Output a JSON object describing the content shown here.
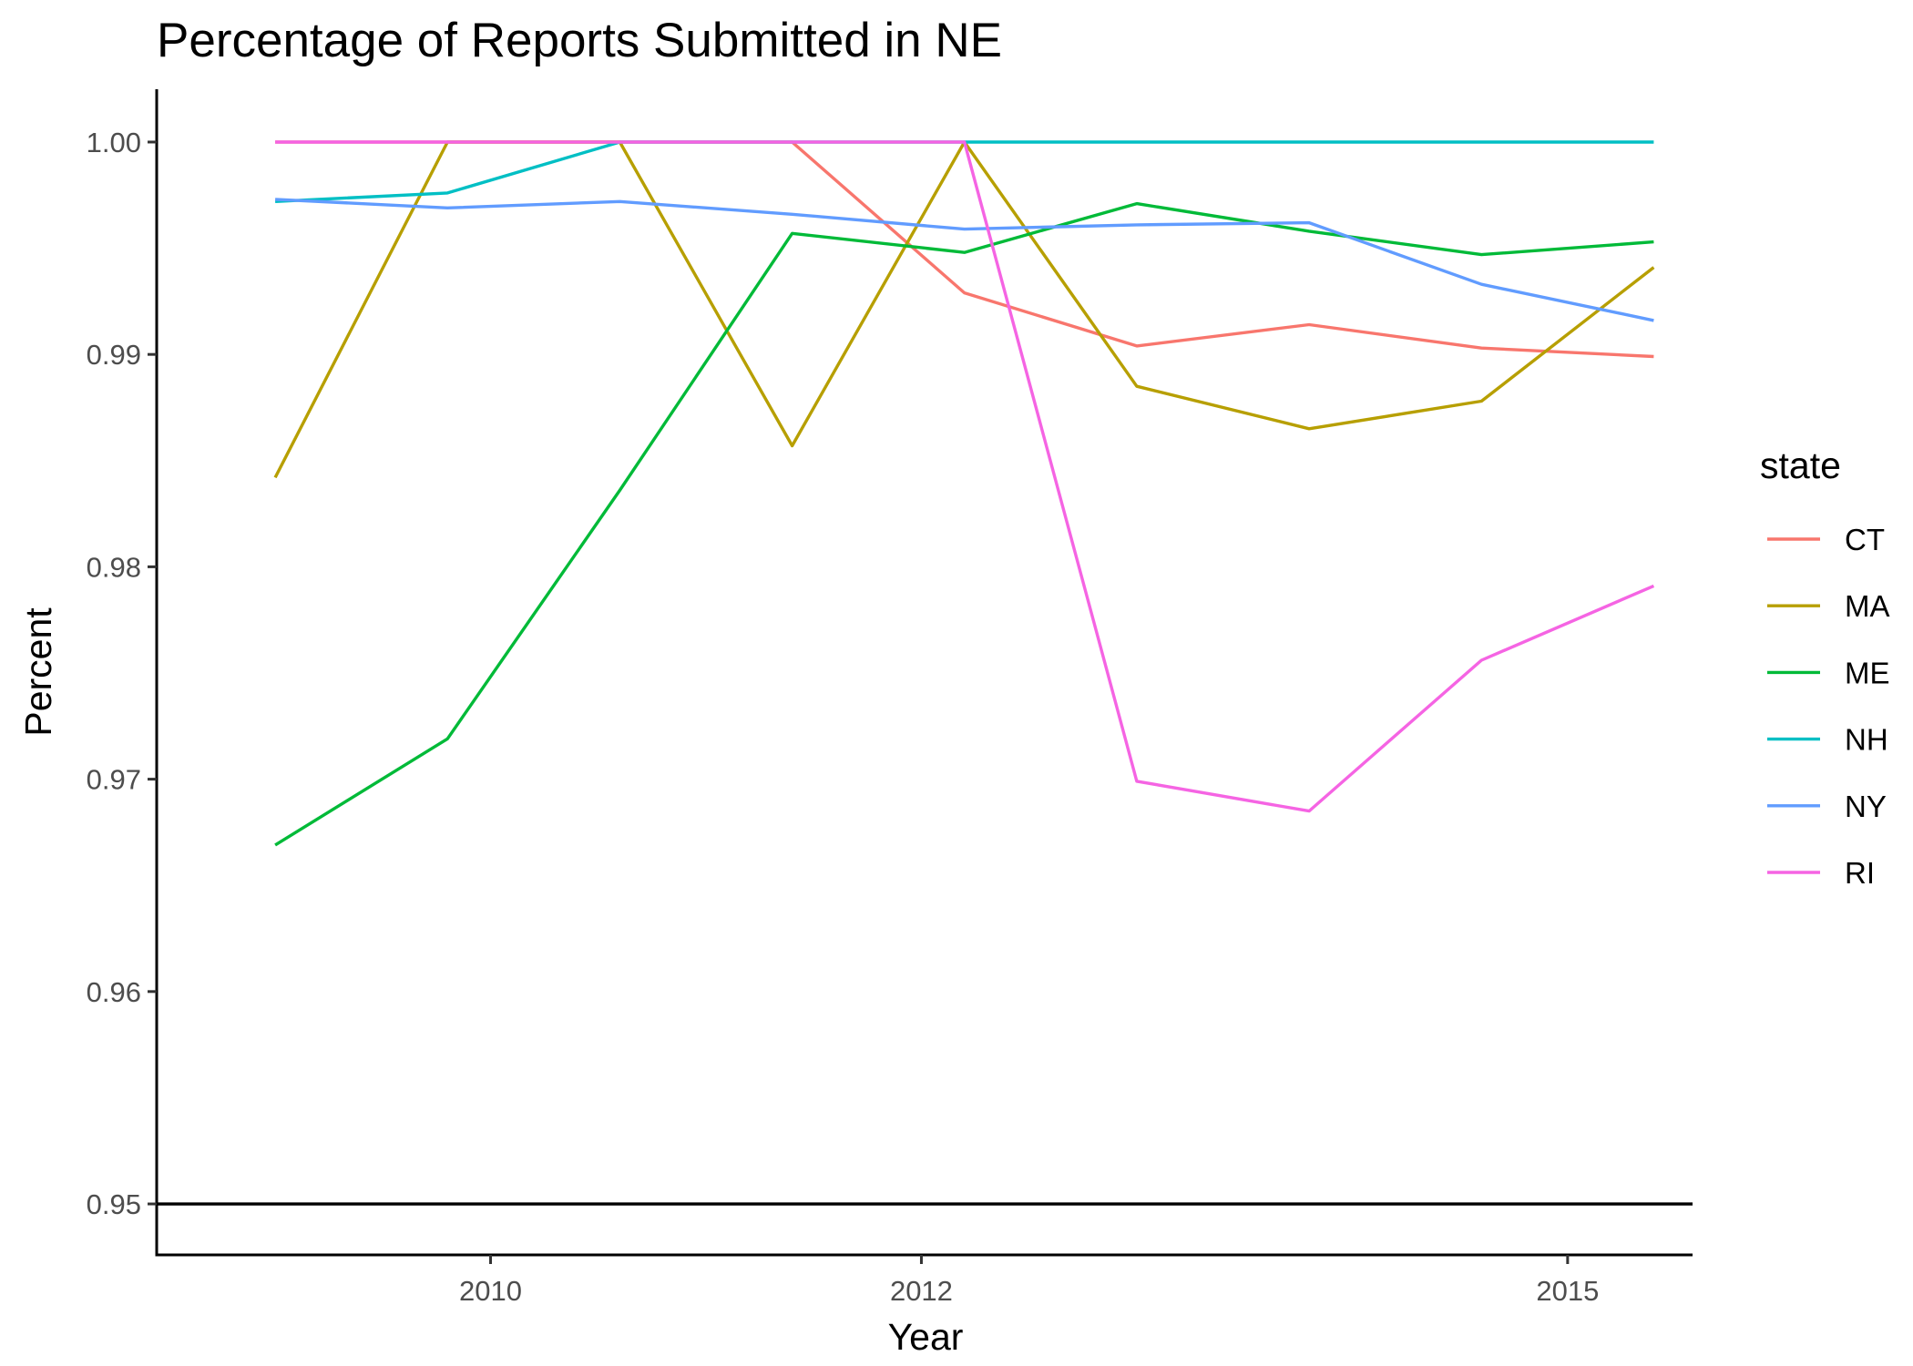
{
  "chart_data": {
    "type": "line",
    "title": "Percentage of Reports Submitted in NE",
    "xlabel": "Year",
    "ylabel": "Percent",
    "x_ticks": [
      2010,
      2012,
      2015
    ],
    "y_ticks": [
      0.95,
      0.96,
      0.97,
      0.98,
      0.99,
      1.0
    ],
    "y_tick_labels": [
      "0.95",
      "0.96",
      "0.97",
      "0.98",
      "0.99",
      "1.00"
    ],
    "xlim": [
      2008.45,
      2015.58
    ],
    "ylim": [
      0.9476,
      1.0024
    ],
    "x": [
      2009.0,
      2009.8,
      2010.6,
      2011.4,
      2012.2,
      2013.0,
      2013.8,
      2014.6,
      2015.4
    ],
    "reference_line": {
      "y": 0.95
    },
    "legend": {
      "title": "state",
      "position": "right"
    },
    "grid": false,
    "series": [
      {
        "name": "CT",
        "color": "#F8766D",
        "values": [
          1.0,
          1.0,
          1.0,
          1.0,
          0.9929,
          0.9904,
          0.9914,
          0.9903,
          0.9899
        ]
      },
      {
        "name": "MA",
        "color": "#B79F00",
        "values": [
          0.9842,
          1.0,
          1.0,
          0.9857,
          1.0,
          0.9885,
          0.9865,
          0.9878,
          0.9941
        ]
      },
      {
        "name": "ME",
        "color": "#00BA38",
        "values": [
          0.9669,
          0.9719,
          0.9836,
          0.9957,
          0.9948,
          0.9971,
          0.9958,
          0.9947,
          0.9953
        ]
      },
      {
        "name": "NH",
        "color": "#00BFC4",
        "values": [
          0.9972,
          0.9976,
          1.0,
          1.0,
          1.0,
          1.0,
          1.0,
          1.0,
          1.0
        ]
      },
      {
        "name": "NY",
        "color": "#619CFF",
        "values": [
          0.9973,
          0.9969,
          0.9972,
          0.9966,
          0.9959,
          0.9961,
          0.9962,
          0.9933,
          0.9916
        ]
      },
      {
        "name": "RI",
        "color": "#F564E3",
        "values": [
          1.0,
          1.0,
          1.0,
          1.0,
          1.0,
          0.9699,
          0.9685,
          0.9756,
          0.9791
        ]
      }
    ]
  }
}
